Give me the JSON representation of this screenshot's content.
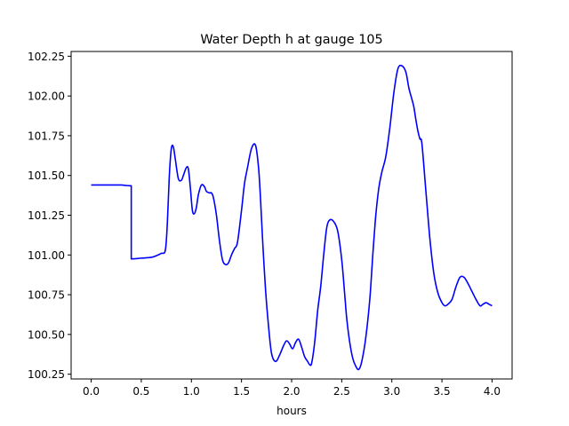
{
  "chart_data": {
    "type": "line",
    "title": "Water Depth h at gauge 105",
    "xlabel": "hours",
    "ylabel": "",
    "xlim": [
      -0.2,
      4.2
    ],
    "ylim": [
      100.22,
      102.28
    ],
    "xticks": [
      0.0,
      0.5,
      1.0,
      1.5,
      2.0,
      2.5,
      3.0,
      3.5,
      4.0
    ],
    "xtick_labels": [
      "0.0",
      "0.5",
      "1.0",
      "1.5",
      "2.0",
      "2.5",
      "3.0",
      "3.5",
      "4.0"
    ],
    "yticks": [
      100.25,
      100.5,
      100.75,
      101.0,
      101.25,
      101.5,
      101.75,
      102.0,
      102.25
    ],
    "ytick_labels": [
      "100.25",
      "100.50",
      "100.75",
      "101.00",
      "101.25",
      "101.50",
      "101.75",
      "102.00",
      "102.25"
    ],
    "grid": false,
    "series": [
      {
        "color": "#0000ff",
        "x": [
          0.0,
          0.1,
          0.2,
          0.3,
          0.35,
          0.4,
          0.4,
          0.45,
          0.5,
          0.6,
          0.65,
          0.7,
          0.74,
          0.76,
          0.78,
          0.8,
          0.82,
          0.84,
          0.87,
          0.9,
          0.92,
          0.95,
          0.97,
          0.99,
          1.01,
          1.03,
          1.05,
          1.07,
          1.1,
          1.13,
          1.15,
          1.18,
          1.2,
          1.22,
          1.25,
          1.28,
          1.31,
          1.34,
          1.37,
          1.4,
          1.43,
          1.46,
          1.5,
          1.53,
          1.56,
          1.6,
          1.64,
          1.67,
          1.69,
          1.71,
          1.74,
          1.77,
          1.8,
          1.84,
          1.88,
          1.92,
          1.95,
          1.98,
          2.01,
          2.04,
          2.07,
          2.1,
          2.13,
          2.16,
          2.18,
          2.2,
          2.23,
          2.26,
          2.29,
          2.32,
          2.35,
          2.38,
          2.42,
          2.46,
          2.5,
          2.53,
          2.55,
          2.58,
          2.61,
          2.64,
          2.67,
          2.7,
          2.74,
          2.78,
          2.81,
          2.84,
          2.87,
          2.9,
          2.94,
          2.98,
          3.02,
          3.06,
          3.1,
          3.14,
          3.17,
          3.2,
          3.22,
          3.24,
          3.26,
          3.28,
          3.3,
          3.34,
          3.38,
          3.42,
          3.46,
          3.5,
          3.53,
          3.56,
          3.6,
          3.64,
          3.68,
          3.72,
          3.76,
          3.8,
          3.84,
          3.88,
          3.91,
          3.94,
          3.97,
          4.0
        ],
        "y": [
          101.44,
          101.44,
          101.44,
          101.44,
          101.437,
          101.435,
          100.975,
          100.977,
          100.98,
          100.985,
          100.995,
          101.01,
          101.03,
          101.2,
          101.5,
          101.67,
          101.68,
          101.6,
          101.48,
          101.47,
          101.5,
          101.55,
          101.54,
          101.42,
          101.28,
          101.26,
          101.3,
          101.38,
          101.44,
          101.43,
          101.4,
          101.39,
          101.39,
          101.36,
          101.25,
          101.09,
          100.97,
          100.94,
          100.95,
          101.0,
          101.04,
          101.08,
          101.28,
          101.45,
          101.55,
          101.67,
          101.69,
          101.55,
          101.35,
          101.1,
          100.78,
          100.55,
          100.38,
          100.33,
          100.37,
          100.43,
          100.46,
          100.44,
          100.41,
          100.45,
          100.47,
          100.42,
          100.36,
          100.33,
          100.31,
          100.32,
          100.45,
          100.65,
          100.8,
          101.0,
          101.17,
          101.22,
          101.21,
          101.15,
          100.97,
          100.75,
          100.6,
          100.45,
          100.35,
          100.3,
          100.28,
          100.33,
          100.48,
          100.72,
          101.0,
          101.25,
          101.42,
          101.52,
          101.62,
          101.8,
          102.02,
          102.17,
          102.19,
          102.15,
          102.05,
          101.98,
          101.93,
          101.85,
          101.78,
          101.73,
          101.7,
          101.4,
          101.1,
          100.88,
          100.76,
          100.7,
          100.68,
          100.69,
          100.72,
          100.8,
          100.86,
          100.86,
          100.82,
          100.77,
          100.72,
          100.68,
          100.69,
          100.7,
          100.69,
          100.68
        ]
      }
    ]
  }
}
